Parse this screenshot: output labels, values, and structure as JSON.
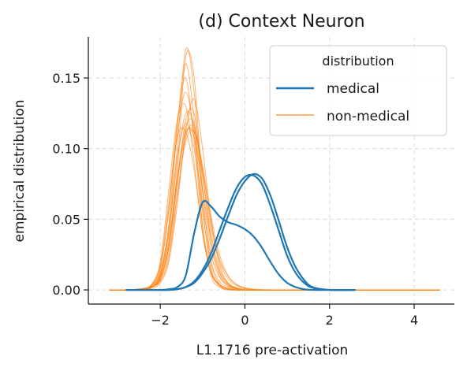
{
  "chart_data": {
    "type": "line",
    "title": "(d) Context Neuron",
    "xlabel": "L1.1716 pre-activation",
    "ylabel": "empirical distribution",
    "xlim": [
      -3.7,
      4.95
    ],
    "ylim": [
      -0.01,
      0.179
    ],
    "xticks": [
      -2,
      0,
      2,
      4
    ],
    "xtick_labels": [
      "−2",
      "0",
      "2",
      "4"
    ],
    "yticks": [
      0.0,
      0.05,
      0.1,
      0.15
    ],
    "ytick_labels": [
      "0.00",
      "0.05",
      "0.10",
      "0.15"
    ],
    "grid": true,
    "legend": {
      "title": "distribution",
      "placement": "top-right",
      "entries": [
        {
          "label": "medical",
          "color": "#1f77b4"
        },
        {
          "label": "non-medical",
          "color": "#ff7f0e"
        }
      ]
    },
    "x": [
      -3.2,
      -2.8,
      -2.4,
      -2.2,
      -2.0,
      -1.8,
      -1.6,
      -1.4,
      -1.2,
      -1.0,
      -0.8,
      -0.6,
      -0.4,
      -0.2,
      0.0,
      0.2,
      0.4,
      0.6,
      0.8,
      1.0,
      1.2,
      1.4,
      1.6,
      2.0,
      2.6,
      3.0,
      3.4,
      4.0,
      4.6
    ],
    "series": [
      {
        "name": "medical",
        "color": "#1f77b4",
        "values": [
          null,
          0.0,
          0.0,
          0.0,
          0.0,
          0.0,
          0.0005,
          0.002,
          0.006,
          0.014,
          0.026,
          0.042,
          0.058,
          0.072,
          0.08,
          0.081,
          0.075,
          0.06,
          0.042,
          0.024,
          0.012,
          0.005,
          0.0015,
          0.0,
          0.0,
          null,
          null,
          null,
          null
        ]
      },
      {
        "name": "medical",
        "color": "#1f77b4",
        "values": [
          null,
          0.0,
          0.0,
          0.0,
          0.0,
          0.0,
          0.0005,
          0.002,
          0.005,
          0.012,
          0.022,
          0.036,
          0.052,
          0.067,
          0.077,
          0.082,
          0.079,
          0.067,
          0.049,
          0.03,
          0.016,
          0.007,
          0.002,
          0.0,
          0.0,
          null,
          null,
          null,
          null
        ]
      },
      {
        "name": "medical",
        "color": "#1f77b4",
        "values": [
          null,
          0.0,
          0.0,
          0.0,
          0.0,
          0.0005,
          0.002,
          0.01,
          0.04,
          0.062,
          0.059,
          0.052,
          0.048,
          0.046,
          0.043,
          0.038,
          0.03,
          0.02,
          0.011,
          0.005,
          0.002,
          0.0005,
          0.0,
          0.0,
          0.0,
          null,
          null,
          null,
          null
        ]
      },
      {
        "name": "non-medical",
        "color": "#ff7f0e",
        "values": [
          0.0,
          0.0,
          0.001,
          0.004,
          0.018,
          0.062,
          0.108,
          0.112,
          0.085,
          0.04,
          0.012,
          0.003,
          0.0005,
          0.0,
          0.0,
          0.0,
          0.0,
          0.0,
          0.0,
          0.0,
          0.0,
          0.0,
          0.0,
          0.0,
          0.0,
          0.0,
          0.0,
          0.0,
          0.0
        ]
      },
      {
        "name": "non-medical",
        "color": "#ff7f0e",
        "values": [
          0.0,
          0.0,
          0.0005,
          0.003,
          0.012,
          0.045,
          0.115,
          0.16,
          0.12,
          0.045,
          0.01,
          0.002,
          0.0,
          0.0,
          0.0,
          0.0,
          0.0,
          0.0,
          0.0,
          0.0,
          0.0,
          0.0,
          0.0,
          0.0,
          0.0,
          0.0,
          0.0,
          0.0,
          0.0
        ]
      },
      {
        "name": "non-medical",
        "color": "#ff7f0e",
        "values": [
          0.0,
          0.0,
          0.0005,
          0.002,
          0.01,
          0.04,
          0.1,
          0.17,
          0.14,
          0.06,
          0.015,
          0.003,
          0.0005,
          0.0,
          0.0,
          0.0,
          0.0,
          0.0,
          0.0,
          0.0,
          0.0,
          0.0,
          0.0,
          0.0,
          0.0,
          0.0,
          0.0,
          0.0,
          0.0
        ]
      },
      {
        "name": "non-medical",
        "color": "#ff7f0e",
        "values": [
          0.0,
          0.0,
          0.001,
          0.004,
          0.02,
          0.07,
          0.12,
          0.13,
          0.09,
          0.04,
          0.012,
          0.004,
          0.001,
          0.0,
          0.0,
          0.0,
          0.0,
          0.0,
          0.0,
          0.0,
          0.0,
          0.0,
          0.0,
          0.0,
          0.0,
          0.0,
          0.0,
          0.0,
          0.0
        ]
      },
      {
        "name": "non-medical",
        "color": "#ff7f0e",
        "values": [
          0.0,
          0.0,
          0.001,
          0.003,
          0.015,
          0.055,
          0.11,
          0.14,
          0.11,
          0.055,
          0.02,
          0.006,
          0.002,
          0.0005,
          0.0,
          0.0,
          0.0,
          0.0,
          0.0,
          0.0,
          0.0,
          0.0,
          0.0,
          0.0,
          0.0,
          0.0,
          0.0,
          0.0,
          0.0
        ]
      },
      {
        "name": "non-medical",
        "color": "#ff7f0e",
        "values": [
          0.0,
          0.0,
          0.0005,
          0.002,
          0.008,
          0.03,
          0.085,
          0.165,
          0.15,
          0.07,
          0.02,
          0.004,
          0.001,
          0.0,
          0.0,
          0.0,
          0.0,
          0.0,
          0.0,
          0.0,
          0.0,
          0.0,
          0.0,
          0.0,
          0.0,
          0.0,
          0.0,
          0.0,
          0.0
        ]
      },
      {
        "name": "non-medical",
        "color": "#ff7f0e",
        "values": [
          0.0,
          0.0,
          0.001,
          0.003,
          0.012,
          0.04,
          0.09,
          0.125,
          0.115,
          0.07,
          0.03,
          0.01,
          0.003,
          0.001,
          0.0,
          0.0,
          0.0,
          0.0,
          0.0,
          0.0,
          0.0,
          0.0,
          0.0,
          0.0,
          0.0,
          0.0,
          0.0,
          0.0,
          0.0
        ]
      },
      {
        "name": "non-medical",
        "color": "#ff7f0e",
        "values": [
          0.0,
          0.0,
          0.0005,
          0.002,
          0.01,
          0.035,
          0.08,
          0.115,
          0.118,
          0.08,
          0.04,
          0.015,
          0.005,
          0.0015,
          0.0005,
          0.0,
          0.0,
          0.0,
          0.0,
          0.0,
          0.0,
          0.0,
          0.0,
          0.0,
          0.0,
          0.0,
          0.0,
          0.0,
          0.0
        ]
      },
      {
        "name": "non-medical",
        "color": "#ff7f0e",
        "values": [
          0.0,
          0.0,
          0.0005,
          0.002,
          0.008,
          0.03,
          0.075,
          0.12,
          0.125,
          0.082,
          0.035,
          0.012,
          0.004,
          0.001,
          0.0,
          0.0,
          0.0,
          0.0,
          0.0,
          0.0,
          0.0,
          0.0,
          0.0,
          0.0,
          0.0,
          0.0,
          0.0,
          0.0,
          0.0
        ]
      },
      {
        "name": "non-medical",
        "color": "#ff7f0e",
        "values": [
          0.0,
          0.0,
          0.0005,
          0.002,
          0.008,
          0.03,
          0.075,
          0.11,
          0.112,
          0.085,
          0.045,
          0.02,
          0.008,
          0.003,
          0.001,
          0.0,
          0.0,
          0.0,
          0.0,
          0.0,
          0.0,
          0.0,
          0.0,
          0.0,
          0.0,
          0.0,
          0.0,
          0.0,
          0.0
        ]
      },
      {
        "name": "non-medical",
        "color": "#ff7f0e",
        "values": [
          0.0,
          0.0,
          0.001,
          0.003,
          0.012,
          0.045,
          0.095,
          0.118,
          0.1,
          0.06,
          0.025,
          0.009,
          0.003,
          0.001,
          0.0,
          0.0,
          0.0,
          0.0,
          0.0,
          0.0,
          0.0,
          0.0,
          0.0,
          0.0,
          0.0,
          0.0,
          0.0,
          0.0,
          0.0
        ]
      },
      {
        "name": "non-medical",
        "color": "#ff7f0e",
        "values": [
          0.0,
          0.0,
          0.0005,
          0.001,
          0.005,
          0.02,
          0.06,
          0.112,
          0.135,
          0.1,
          0.05,
          0.018,
          0.005,
          0.0015,
          0.0,
          0.0,
          0.0,
          0.0,
          0.0,
          0.0,
          0.0,
          0.0,
          0.0,
          0.0,
          0.0,
          0.0,
          0.0,
          0.0,
          0.0
        ]
      },
      {
        "name": "non-medical",
        "color": "#ff7f0e",
        "values": [
          0.0,
          0.0,
          0.0005,
          0.002,
          0.006,
          0.022,
          0.065,
          0.108,
          0.115,
          0.085,
          0.048,
          0.022,
          0.01,
          0.004,
          0.0015,
          0.0005,
          0.0,
          0.0,
          0.0,
          0.0,
          0.0,
          0.0,
          0.0,
          0.0,
          0.0,
          0.0,
          0.0,
          0.0,
          0.0
        ]
      },
      {
        "name": "non-medical",
        "color": "#ff7f0e",
        "values": [
          0.0,
          0.0,
          0.0005,
          0.002,
          0.009,
          0.032,
          0.078,
          0.112,
          0.108,
          0.072,
          0.035,
          0.013,
          0.004,
          0.001,
          0.0,
          0.0,
          0.0,
          0.0,
          0.0,
          0.0,
          0.0,
          0.0,
          0.0,
          0.0,
          0.0,
          0.0,
          0.0,
          0.0,
          0.0
        ]
      },
      {
        "name": "non-medical",
        "color": "#ff7f0e",
        "values": [
          0.0,
          0.0,
          0.001,
          0.004,
          0.016,
          0.058,
          0.118,
          0.15,
          0.105,
          0.045,
          0.014,
          0.004,
          0.001,
          0.0,
          0.0,
          0.0,
          0.0,
          0.0,
          0.0,
          0.0,
          0.0,
          0.0,
          0.0,
          0.0,
          0.0,
          0.0,
          0.0,
          0.0,
          0.0
        ]
      },
      {
        "name": "non-medical",
        "color": "#ff7f0e",
        "values": [
          0.0,
          0.0,
          0.0005,
          0.002,
          0.007,
          0.025,
          0.068,
          0.105,
          0.112,
          0.088,
          0.052,
          0.025,
          0.01,
          0.004,
          0.0015,
          0.0005,
          0.0002,
          0.0,
          0.0,
          0.0,
          0.0,
          0.0,
          0.0,
          0.0,
          0.0,
          0.0,
          0.0,
          0.0,
          0.0
        ]
      }
    ]
  }
}
